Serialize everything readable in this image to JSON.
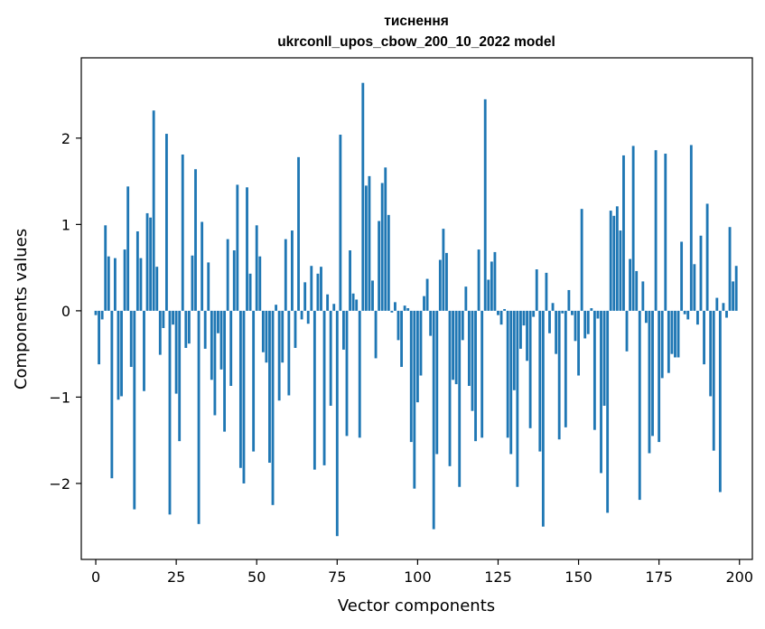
{
  "chart_data": {
    "type": "bar",
    "title": "тиснення",
    "subtitle": "ukrconll_upos_cbow_200_10_2022 model",
    "xlabel": "Vector components",
    "ylabel": "Components values",
    "xlim": [
      -4.5,
      204
    ],
    "ylim": [
      -2.88,
      2.93
    ],
    "xticks": [
      0,
      25,
      50,
      75,
      100,
      125,
      150,
      175,
      200
    ],
    "yticks": [
      -2,
      -1,
      0,
      1,
      2
    ],
    "grid": false,
    "legend": "none",
    "bar_color": "#1f77b4",
    "values": [
      -0.05,
      -0.62,
      -0.1,
      0.99,
      0.63,
      -1.94,
      0.61,
      -1.03,
      -0.99,
      0.71,
      1.44,
      -0.65,
      -2.3,
      0.92,
      0.61,
      -0.93,
      1.13,
      1.08,
      2.32,
      0.51,
      -0.51,
      -0.2,
      2.05,
      -2.36,
      -0.16,
      -0.96,
      -1.51,
      1.81,
      -0.43,
      -0.38,
      0.64,
      1.64,
      -2.47,
      1.03,
      -0.44,
      0.56,
      -0.8,
      -1.21,
      -0.26,
      -0.68,
      -1.4,
      0.83,
      -0.87,
      0.7,
      1.46,
      -1.82,
      -2.0,
      1.43,
      0.43,
      -1.63,
      0.99,
      0.63,
      -0.48,
      -0.6,
      -1.76,
      -2.25,
      0.07,
      -1.04,
      -0.6,
      0.83,
      -0.98,
      0.93,
      -0.43,
      1.78,
      -0.1,
      0.33,
      -0.15,
      0.52,
      -1.84,
      0.43,
      0.51,
      -1.79,
      0.19,
      -1.1,
      0.08,
      -2.61,
      2.04,
      -0.45,
      -1.45,
      0.7,
      0.2,
      0.13,
      -1.47,
      2.64,
      1.45,
      1.56,
      0.35,
      -0.55,
      1.04,
      1.48,
      1.66,
      1.11,
      -0.02,
      0.1,
      -0.34,
      -0.65,
      0.06,
      0.03,
      -1.52,
      -2.06,
      -1.06,
      -0.75,
      0.17,
      0.37,
      -0.29,
      -2.53,
      -1.66,
      0.59,
      0.95,
      0.67,
      -1.8,
      -0.8,
      -0.85,
      -2.04,
      -0.34,
      0.28,
      -0.87,
      -1.16,
      -1.51,
      0.71,
      -1.47,
      2.45,
      0.36,
      0.57,
      0.68,
      -0.05,
      -0.16,
      0.02,
      -1.47,
      -1.66,
      -0.92,
      -2.04,
      -0.44,
      -0.17,
      -0.58,
      -1.36,
      -0.07,
      0.48,
      -1.63,
      -2.5,
      0.44,
      -0.26,
      0.09,
      -0.5,
      -1.49,
      -0.03,
      -1.35,
      0.24,
      -0.05,
      -0.35,
      -0.75,
      1.18,
      -0.32,
      -0.27,
      0.03,
      -1.38,
      -0.09,
      -1.88,
      -1.1,
      -2.34,
      1.16,
      1.1,
      1.21,
      0.93,
      1.8,
      -0.47,
      0.6,
      1.91,
      0.46,
      -2.19,
      0.34,
      -0.14,
      -1.65,
      -1.45,
      1.86,
      -1.52,
      -0.78,
      1.82,
      -0.72,
      -0.5,
      -0.54,
      -0.54,
      0.8,
      -0.04,
      -0.1,
      1.92,
      0.54,
      -0.16,
      0.87,
      -0.62,
      1.24,
      -0.99,
      -1.62,
      0.15,
      -2.1,
      0.09,
      -0.08,
      0.97,
      0.34,
      0.52
    ]
  }
}
